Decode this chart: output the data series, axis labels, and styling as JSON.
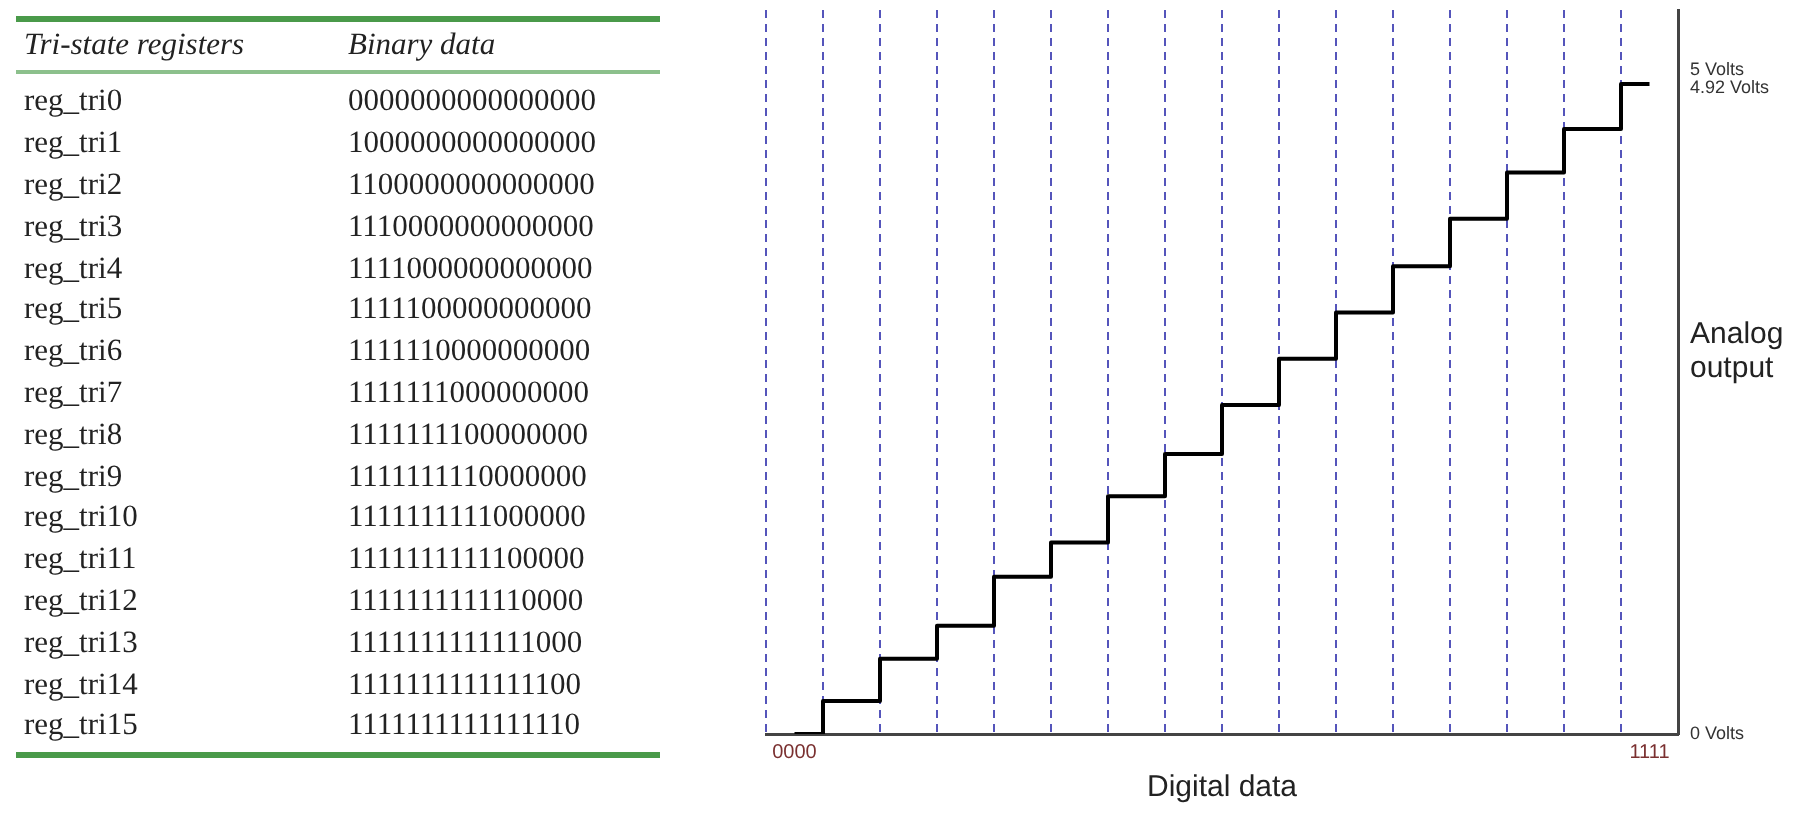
{
  "chart_data": [
    {
      "type": "other",
      "annotations": [
        "Tri-state registers",
        "Binary data",
        "reg_tri0",
        "0000000000000000",
        "reg_tri1",
        "1000000000000000",
        "reg_tri2",
        "1100000000000000",
        "reg_tri3",
        "1110000000000000",
        "reg_tri4",
        "1111000000000000",
        "reg_tri5",
        "1111100000000000",
        "reg_tri6",
        "1111110000000000",
        "reg_tri7",
        "1111111000000000",
        "reg_tri8",
        "1111111100000000",
        "reg_tri9",
        "1111111110000000",
        "reg_tri10",
        "1111111111000000",
        "reg_tri11",
        "1111111111100000",
        "reg_tri12",
        "1111111111110000",
        "reg_tri13",
        "1111111111111000",
        "reg_tri14",
        "1111111111111100",
        "reg_tri15",
        "1111111111111110"
      ]
    },
    {
      "type": "step",
      "xlabel": "Digital data",
      "y2label": "Analog output",
      "categories": [
        "0000",
        null,
        null,
        null,
        null,
        null,
        null,
        null,
        null,
        null,
        null,
        null,
        null,
        null,
        null,
        "1111"
      ],
      "series": [
        {
          "color": "#000000",
          "axis": "y2",
          "values": [
            0,
            0.25,
            0.57,
            0.82,
            1.19,
            1.45,
            1.8,
            2.12,
            2.49,
            2.84,
            3.19,
            3.54,
            3.9,
            4.25,
            4.58,
            4.92
          ]
        }
      ],
      "y2lim": [
        0,
        5.48
      ],
      "y2ticks": [
        {
          "value": 0,
          "label": "0 Volts"
        },
        {
          "value": 4.92,
          "label": "4.92 Volts"
        },
        {
          "value": 5,
          "label": "5 Volts"
        }
      ],
      "grid": "x"
    }
  ]
}
